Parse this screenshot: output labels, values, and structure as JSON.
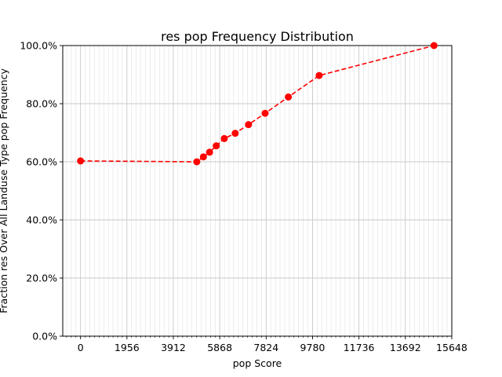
{
  "chart_data": {
    "type": "line",
    "title": "res pop Frequency Distribution",
    "xlabel": "pop Score",
    "ylabel": "Fraction res Over All Landuse Type pop Frequency",
    "x_ticks": [
      "0",
      "1956",
      "3912",
      "5868",
      "7824",
      "9780",
      "11736",
      "13692",
      "15648"
    ],
    "y_ticks": [
      "0.0%",
      "20.0%",
      "40.0%",
      "60.0%",
      "80.0%",
      "100.0%"
    ],
    "xlim": [
      -750,
      15650
    ],
    "ylim": [
      0,
      1.0
    ],
    "grid": true,
    "series": [
      {
        "line_style": "dashed",
        "marker": "circle",
        "color": "#ff0000",
        "points": [
          {
            "x": 0,
            "y": 0.603
          },
          {
            "x": 4900,
            "y": 0.6
          },
          {
            "x": 5180,
            "y": 0.617
          },
          {
            "x": 5440,
            "y": 0.633
          },
          {
            "x": 5720,
            "y": 0.655
          },
          {
            "x": 6060,
            "y": 0.68
          },
          {
            "x": 6520,
            "y": 0.698
          },
          {
            "x": 7080,
            "y": 0.728
          },
          {
            "x": 7780,
            "y": 0.767
          },
          {
            "x": 8760,
            "y": 0.823
          },
          {
            "x": 10060,
            "y": 0.897
          },
          {
            "x": 14900,
            "y": 1.0
          }
        ]
      }
    ]
  }
}
